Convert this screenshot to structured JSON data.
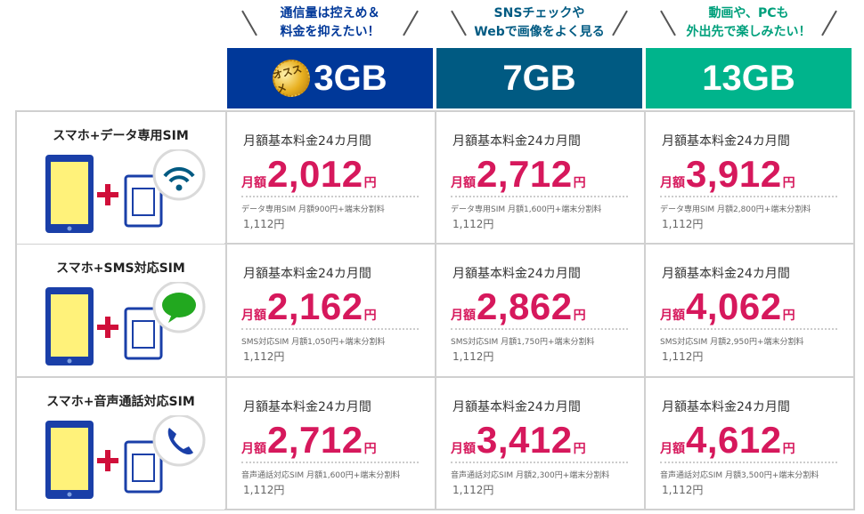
{
  "plans": [
    {
      "tagline": [
        "通信量は控えめ＆",
        "料金を抑えたい！"
      ],
      "name": "3GB",
      "color": "#003899",
      "badge": "オススメ"
    },
    {
      "tagline": [
        "SNSチェックや",
        "Webで画像をよく見る"
      ],
      "name": "7GB",
      "color": "#005a82"
    },
    {
      "tagline": [
        "動画や、PCも",
        "外出先で楽しみたい！"
      ],
      "name": "13GB",
      "color": "#00b48c"
    }
  ],
  "rows": [
    {
      "label": "スマホ+データ専用SIM",
      "icon": "wifi-icon",
      "cells": [
        {
          "period": "月額基本料金24カ月間",
          "prefix": "月額",
          "price": "2,012",
          "suffix": "円",
          "note": "データ専用SIM 月額900円+端末分割料",
          "fee": "1,112円"
        },
        {
          "period": "月額基本料金24カ月間",
          "prefix": "月額",
          "price": "2,712",
          "suffix": "円",
          "note": "データ専用SIM 月額1,600円+端末分割料",
          "fee": "1,112円"
        },
        {
          "period": "月額基本料金24カ月間",
          "prefix": "月額",
          "price": "3,912",
          "suffix": "円",
          "note": "データ専用SIM 月額2,800円+端末分割料",
          "fee": "1,112円"
        }
      ]
    },
    {
      "label": "スマホ+SMS対応SIM",
      "icon": "chat-bubble-icon",
      "cells": [
        {
          "period": "月額基本料金24カ月間",
          "prefix": "月額",
          "price": "2,162",
          "suffix": "円",
          "note": "SMS対応SIM 月額1,050円+端末分割料",
          "fee": "1,112円"
        },
        {
          "period": "月額基本料金24カ月間",
          "prefix": "月額",
          "price": "2,862",
          "suffix": "円",
          "note": "SMS対応SIM 月額1,750円+端末分割料",
          "fee": "1,112円"
        },
        {
          "period": "月額基本料金24カ月間",
          "prefix": "月額",
          "price": "4,062",
          "suffix": "円",
          "note": "SMS対応SIM 月額2,950円+端末分割料",
          "fee": "1,112円"
        }
      ]
    },
    {
      "label": "スマホ+音声通話対応SIM",
      "icon": "phone-icon",
      "cells": [
        {
          "period": "月額基本料金24カ月間",
          "prefix": "月額",
          "price": "2,712",
          "suffix": "円",
          "note": "音声通話対応SIM 月額1,600円+端末分割料",
          "fee": "1,112円"
        },
        {
          "period": "月額基本料金24カ月間",
          "prefix": "月額",
          "price": "3,412",
          "suffix": "円",
          "note": "音声通話対応SIM 月額2,300円+端末分割料",
          "fee": "1,112円"
        },
        {
          "period": "月額基本料金24カ月間",
          "prefix": "月額",
          "price": "4,612",
          "suffix": "円",
          "note": "音声通話対応SIM 月額3,500円+端末分割料",
          "fee": "1,112円"
        }
      ]
    }
  ]
}
